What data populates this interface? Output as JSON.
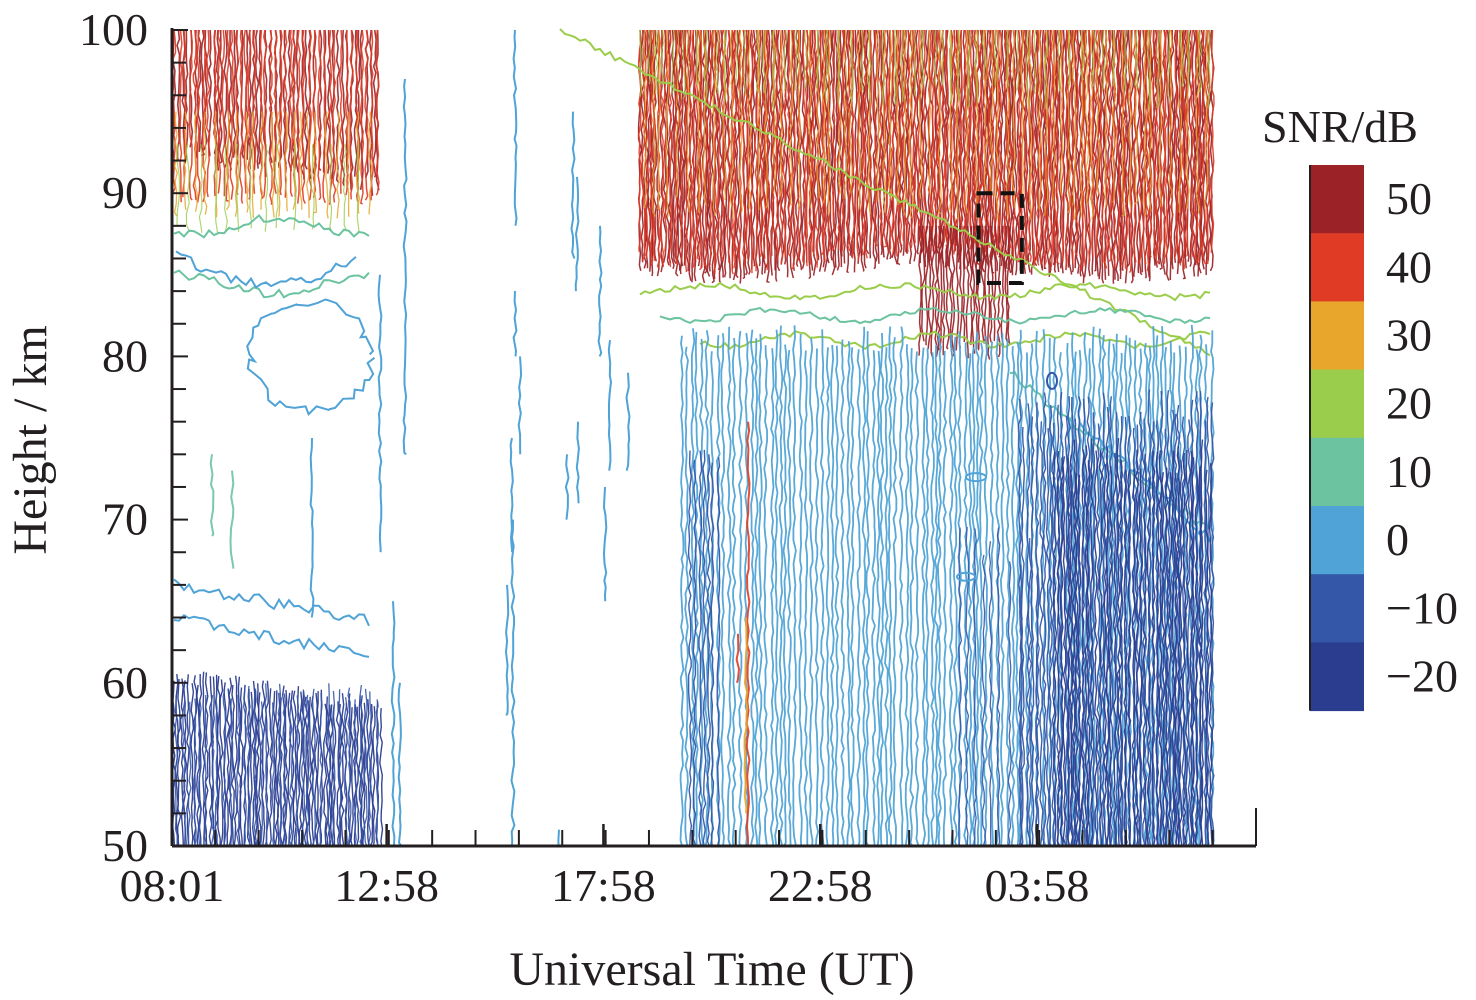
{
  "chart_data": {
    "type": "heatmap",
    "title": "",
    "xlabel": "Universal Time (UT)",
    "ylabel": "Height / km",
    "x_tick_labels": [
      "08:01",
      "12:58",
      "17:58",
      "22:58",
      "03:58"
    ],
    "x_tick_hours": [
      0,
      4.95,
      9.95,
      14.95,
      19.95
    ],
    "x_range_hours": [
      0,
      25
    ],
    "y_ticks": [
      50,
      60,
      70,
      80,
      90,
      100
    ],
    "ylim": [
      50,
      100
    ],
    "colorbar": {
      "title": "SNR/dB",
      "labels": [
        "50",
        "40",
        "30",
        "20",
        "10",
        "0",
        "−10",
        "−20"
      ],
      "levels": [
        50,
        40,
        30,
        20,
        10,
        0,
        -10,
        -20
      ],
      "colors": [
        "#9b2226",
        "#e03b24",
        "#e8a62d",
        "#9acd4b",
        "#6cc3a0",
        "#4fa3d6",
        "#3557a8",
        "#2b3d8f"
      ]
    },
    "features": [
      {
        "name": "high SNR band",
        "x_hours": [
          0,
          5
        ],
        "y_km": [
          88,
          100
        ],
        "level": 40
      },
      {
        "name": "high SNR band",
        "x_hours": [
          11.3,
          25
        ],
        "y_km": [
          84,
          100
        ],
        "level": 40
      },
      {
        "name": "low SNR region",
        "x_hours": [
          0,
          5
        ],
        "y_km": [
          50,
          62
        ],
        "level": -20
      },
      {
        "name": "low SNR region",
        "x_hours": [
          12.5,
          25
        ],
        "y_km": [
          50,
          82
        ],
        "level": 0
      }
    ],
    "annotations": [
      {
        "type": "dashed-box",
        "x_hours": [
          18.6,
          19.6
        ],
        "y_km": [
          84.5,
          90
        ]
      }
    ]
  }
}
